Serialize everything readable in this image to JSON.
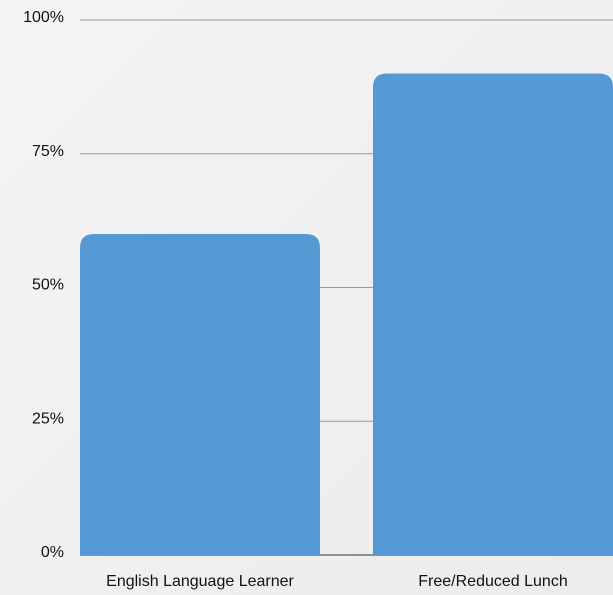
{
  "chart_data": {
    "type": "bar",
    "categories": [
      "English Language Learner",
      "Free/Reduced Lunch"
    ],
    "values": [
      60,
      90
    ],
    "color": "#5499d3",
    "ylim": [
      0,
      100
    ],
    "yticks": [
      {
        "value": 0,
        "label": "0%"
      },
      {
        "value": 25,
        "label": "25%"
      },
      {
        "value": 50,
        "label": "50%"
      },
      {
        "value": 75,
        "label": "75%"
      },
      {
        "value": 100,
        "label": "100%"
      }
    ],
    "grid": true
  }
}
